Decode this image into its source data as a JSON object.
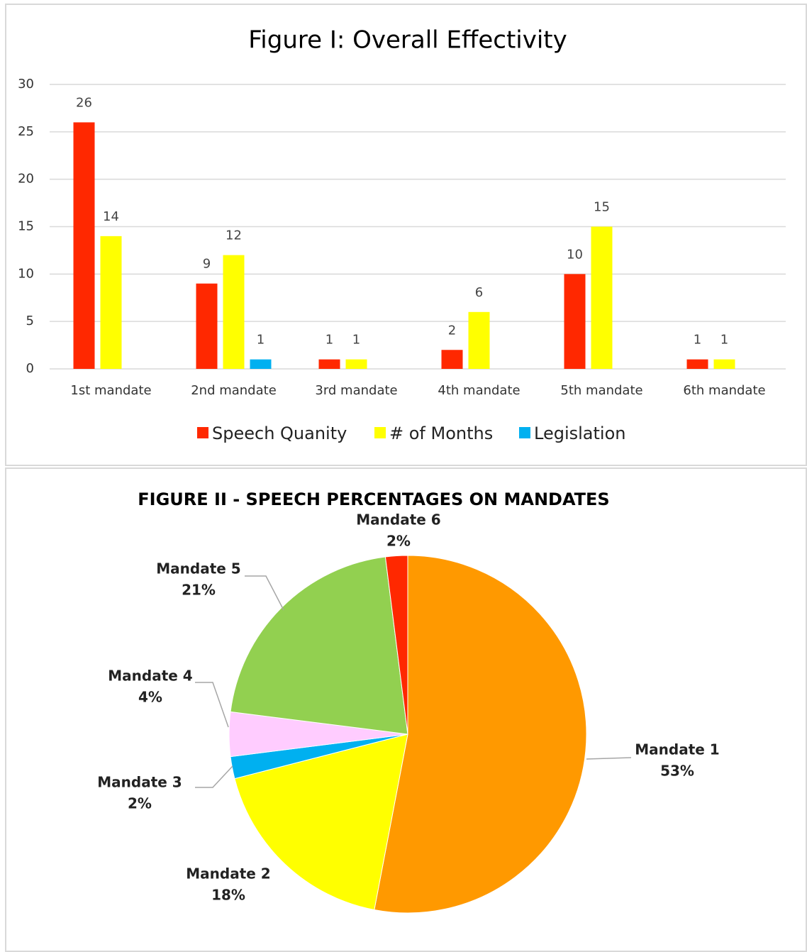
{
  "chart_data": [
    {
      "type": "bar",
      "title": "Figure I: Overall Effectivity",
      "categories": [
        "1st mandate",
        "2nd mandate",
        "3rd mandate",
        "4th mandate",
        "5th mandate",
        "6th mandate"
      ],
      "series": [
        {
          "name": "Speech Quanity",
          "color": "#ff2800",
          "values": [
            26,
            9,
            1,
            2,
            10,
            1
          ]
        },
        {
          "name": "# of Months",
          "color": "#ffff00",
          "values": [
            14,
            12,
            1,
            6,
            15,
            1
          ]
        },
        {
          "name": "Legislation",
          "color": "#00b0f0",
          "values": [
            null,
            1,
            null,
            null,
            null,
            null
          ]
        }
      ],
      "ylim": [
        0,
        30
      ],
      "yticks": [
        0,
        5,
        10,
        15,
        20,
        25,
        30
      ],
      "grid": true,
      "legend": "bottom"
    },
    {
      "type": "pie",
      "title": "FIGURE II - SPEECH PERCENTAGES ON MANDATES",
      "categories": [
        "Mandate 1",
        "Mandate 2",
        "Mandate 3",
        "Mandate 4",
        "Mandate 5",
        "Mandate 6"
      ],
      "values": [
        53,
        18,
        2,
        4,
        21,
        2
      ],
      "value_labels": [
        "53%",
        "18%",
        "2%",
        "4%",
        "21%",
        "2%"
      ],
      "colors": [
        "#ff9900",
        "#ffff00",
        "#00b0f0",
        "#ffccff",
        "#92d050",
        "#ff2800"
      ]
    }
  ]
}
